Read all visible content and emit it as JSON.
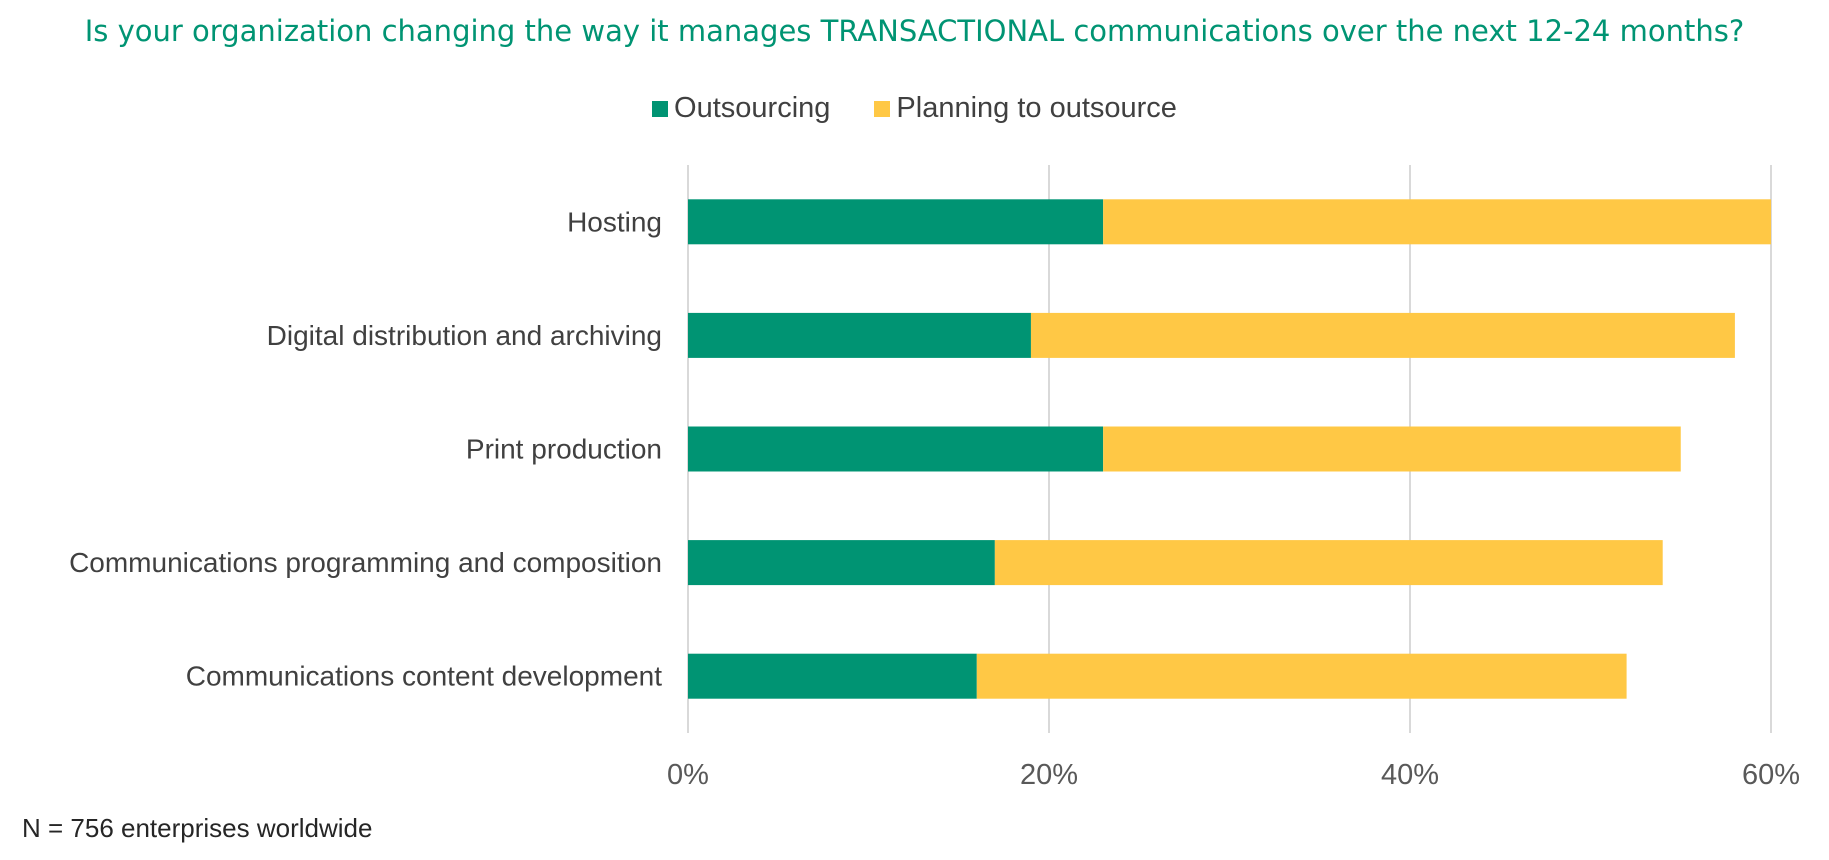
{
  "chart_data": {
    "type": "bar",
    "orientation": "horizontal",
    "stacked": true,
    "title": "Is your organization changing the way it manages TRANSACTIONAL communications over the next 12-24 months?",
    "categories": [
      "Hosting",
      "Digital distribution and archiving",
      "Print production",
      "Communications programming and composition",
      "Communications content development"
    ],
    "series": [
      {
        "name": "Outsourcing",
        "color": "#009473",
        "values": [
          23,
          19,
          23,
          17,
          16
        ]
      },
      {
        "name": "Planning to outsource",
        "color": "#FFC845",
        "values": [
          37,
          39,
          32,
          37,
          36
        ]
      }
    ],
    "xlim": [
      0,
      60
    ],
    "xticks": [
      "0%",
      "20%",
      "40%",
      "60%"
    ],
    "xtick_values": [
      0,
      20,
      40,
      60
    ],
    "grid": true,
    "legend_position": "top",
    "title_color": "#009473"
  },
  "footnote": "N = 756 enterprises worldwide"
}
